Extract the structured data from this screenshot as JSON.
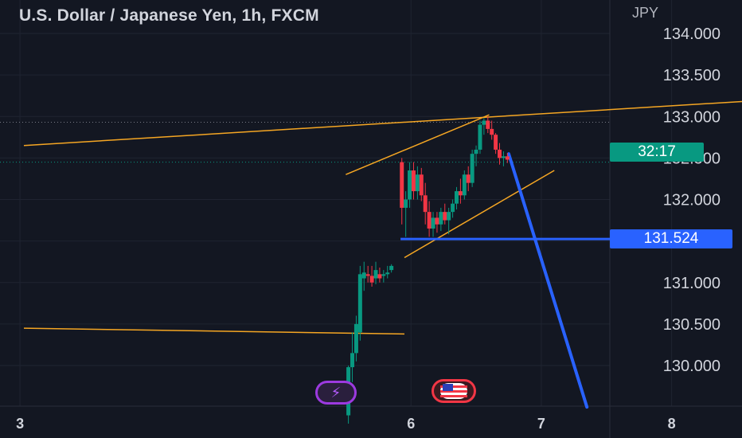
{
  "header": {
    "title": "U.S. Dollar / Japanese Yen, 1h, FXCM",
    "currency": "JPY"
  },
  "badges": {
    "timer": "32:17",
    "price": "131.524"
  },
  "events": {
    "flash_icon": "lightning-icon",
    "flag_icon": "us-flag-icon"
  },
  "colors": {
    "background": "#131722",
    "up": "#089981",
    "down": "#f23645",
    "trendline": "#f5a623",
    "level": "#2962ff",
    "projection": "#2962ff"
  },
  "chart_data": {
    "type": "candlestick",
    "title": "U.S. Dollar / Japanese Yen, 1h, FXCM",
    "ylabel": "JPY",
    "ylim": [
      129.5,
      134.25
    ],
    "yticks": [
      "134.000",
      "133.500",
      "133.000",
      "132.500",
      "132.000",
      "131.500",
      "131.000",
      "130.500",
      "130.000"
    ],
    "xticks": [
      3,
      6,
      7,
      8
    ],
    "xlim": [
      3.03,
      8.54
    ],
    "grid": true,
    "current_price": 132.45,
    "level_price": 131.524,
    "candles": [
      {
        "x": 5.52,
        "o": 129.4,
        "h": 130.0,
        "l": 129.3,
        "c": 129.98
      },
      {
        "x": 5.55,
        "o": 129.98,
        "h": 130.4,
        "l": 129.8,
        "c": 130.15
      },
      {
        "x": 5.58,
        "o": 130.15,
        "h": 130.6,
        "l": 130.05,
        "c": 130.5
      },
      {
        "x": 5.61,
        "o": 130.4,
        "h": 131.2,
        "l": 130.3,
        "c": 131.1
      },
      {
        "x": 5.64,
        "o": 131.05,
        "h": 131.25,
        "l": 130.9,
        "c": 131.12
      },
      {
        "x": 5.67,
        "o": 131.1,
        "h": 131.2,
        "l": 131.0,
        "c": 131.08
      },
      {
        "x": 5.7,
        "o": 131.08,
        "h": 131.2,
        "l": 130.95,
        "c": 131.0
      },
      {
        "x": 5.73,
        "o": 131.05,
        "h": 131.25,
        "l": 130.98,
        "c": 131.15
      },
      {
        "x": 5.76,
        "o": 131.1,
        "h": 131.18,
        "l": 131.0,
        "c": 131.05
      },
      {
        "x": 5.79,
        "o": 131.08,
        "h": 131.15,
        "l": 131.0,
        "c": 131.1
      },
      {
        "x": 5.82,
        "o": 131.1,
        "h": 131.2,
        "l": 131.05,
        "c": 131.12
      },
      {
        "x": 5.85,
        "o": 131.15,
        "h": 131.22,
        "l": 131.12,
        "c": 131.2
      },
      {
        "x": 5.93,
        "o": 132.45,
        "h": 132.5,
        "l": 131.7,
        "c": 131.9
      },
      {
        "x": 5.96,
        "o": 131.9,
        "h": 132.1,
        "l": 131.55,
        "c": 132.0
      },
      {
        "x": 5.99,
        "o": 132.0,
        "h": 132.45,
        "l": 131.9,
        "c": 132.35
      },
      {
        "x": 6.02,
        "o": 132.35,
        "h": 132.45,
        "l": 132.0,
        "c": 132.1
      },
      {
        "x": 6.05,
        "o": 132.1,
        "h": 132.4,
        "l": 132.0,
        "c": 132.3
      },
      {
        "x": 6.08,
        "o": 132.3,
        "h": 132.38,
        "l": 131.98,
        "c": 132.05
      },
      {
        "x": 6.11,
        "o": 132.05,
        "h": 132.2,
        "l": 131.7,
        "c": 131.85
      },
      {
        "x": 6.14,
        "o": 131.85,
        "h": 131.98,
        "l": 131.55,
        "c": 131.65
      },
      {
        "x": 6.17,
        "o": 131.65,
        "h": 131.85,
        "l": 131.55,
        "c": 131.78
      },
      {
        "x": 6.2,
        "o": 131.78,
        "h": 131.85,
        "l": 131.6,
        "c": 131.7
      },
      {
        "x": 6.23,
        "o": 131.7,
        "h": 131.9,
        "l": 131.62,
        "c": 131.85
      },
      {
        "x": 6.26,
        "o": 131.85,
        "h": 131.95,
        "l": 131.7,
        "c": 131.75
      },
      {
        "x": 6.29,
        "o": 131.75,
        "h": 131.9,
        "l": 131.58,
        "c": 131.85
      },
      {
        "x": 6.32,
        "o": 131.85,
        "h": 132.0,
        "l": 131.78,
        "c": 131.95
      },
      {
        "x": 6.35,
        "o": 131.95,
        "h": 132.15,
        "l": 131.88,
        "c": 132.1
      },
      {
        "x": 6.38,
        "o": 132.1,
        "h": 132.25,
        "l": 131.95,
        "c": 132.05
      },
      {
        "x": 6.41,
        "o": 132.05,
        "h": 132.35,
        "l": 132.0,
        "c": 132.3
      },
      {
        "x": 6.44,
        "o": 132.3,
        "h": 132.4,
        "l": 132.1,
        "c": 132.2
      },
      {
        "x": 6.47,
        "o": 132.2,
        "h": 132.6,
        "l": 132.15,
        "c": 132.55
      },
      {
        "x": 6.5,
        "o": 132.55,
        "h": 132.65,
        "l": 132.4,
        "c": 132.6
      },
      {
        "x": 6.53,
        "o": 132.6,
        "h": 132.95,
        "l": 132.55,
        "c": 132.9
      },
      {
        "x": 6.56,
        "o": 132.9,
        "h": 132.98,
        "l": 132.78,
        "c": 132.95
      },
      {
        "x": 6.59,
        "o": 132.95,
        "h": 133.0,
        "l": 132.8,
        "c": 132.85
      },
      {
        "x": 6.62,
        "o": 132.85,
        "h": 132.95,
        "l": 132.72,
        "c": 132.78
      },
      {
        "x": 6.65,
        "o": 132.78,
        "h": 132.8,
        "l": 132.55,
        "c": 132.6
      },
      {
        "x": 6.68,
        "o": 132.6,
        "h": 132.68,
        "l": 132.42,
        "c": 132.5
      },
      {
        "x": 6.71,
        "o": 132.5,
        "h": 132.58,
        "l": 132.4,
        "c": 132.52
      },
      {
        "x": 6.74,
        "o": 132.52,
        "h": 132.56,
        "l": 132.44,
        "c": 132.48
      }
    ],
    "trendlines": [
      {
        "x": [
          3.03,
          8.54
        ],
        "y": [
          132.65,
          133.18
        ]
      },
      {
        "x": 5.5,
        "y": [
          132.3,
          133.02
        ],
        "x2": 6.6
      },
      {
        "x": 5.95,
        "y": [
          131.3,
          132.35
        ],
        "x2": 7.1
      },
      {
        "x": 3.03,
        "y": [
          130.45,
          130.38
        ],
        "x2": 5.95
      }
    ],
    "projection": {
      "x": [
        6.75,
        7.35
      ],
      "y": [
        132.55,
        129.5
      ]
    }
  }
}
